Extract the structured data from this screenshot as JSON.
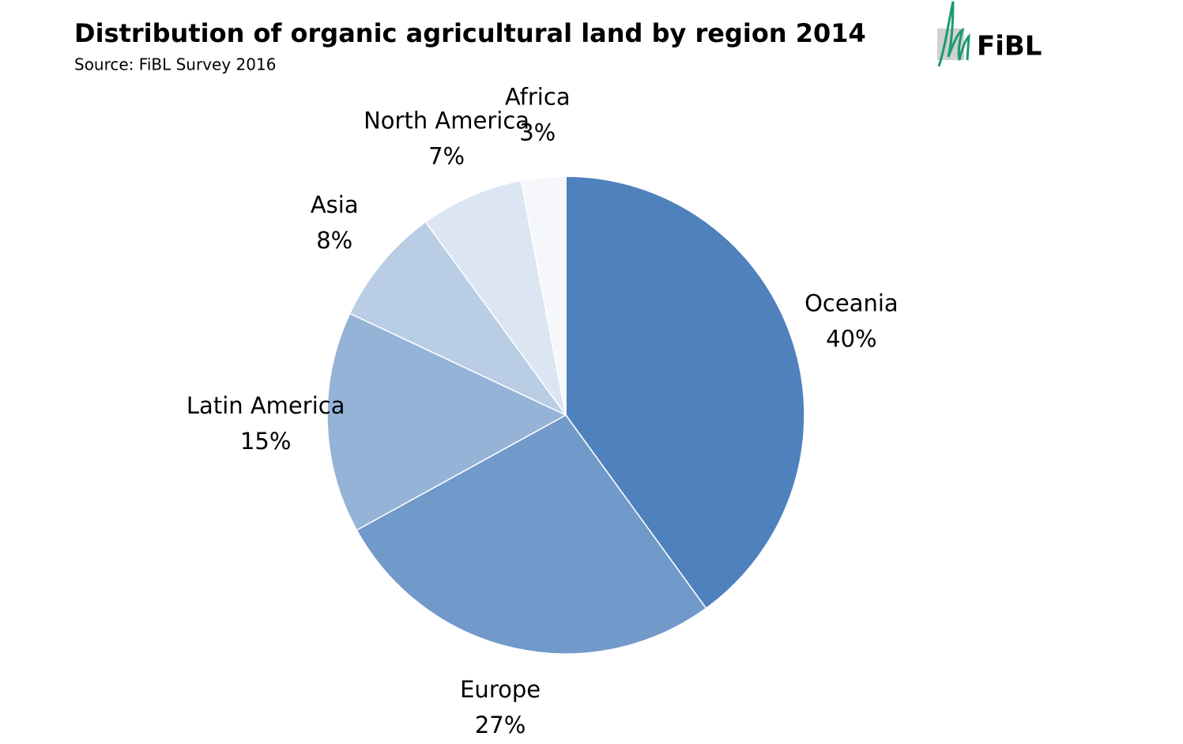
{
  "logo": "FiBL",
  "chart_data": {
    "type": "pie",
    "title": "Distribution of organic agricultural land by region 2014",
    "subtitle": "Source: FiBL Survey 2016",
    "categories": [
      "Oceania",
      "Europe",
      "Latin America",
      "Asia",
      "North America",
      "Africa"
    ],
    "values": [
      40,
      27,
      15,
      8,
      7,
      3
    ],
    "value_labels": [
      "40%",
      "27%",
      "15%",
      "8%",
      "7%",
      "3%"
    ],
    "colors": [
      "#4f81bd",
      "#7199ca",
      "#95b3d7",
      "#b9cde5",
      "#dce6f2",
      "#f5f7fa"
    ]
  }
}
